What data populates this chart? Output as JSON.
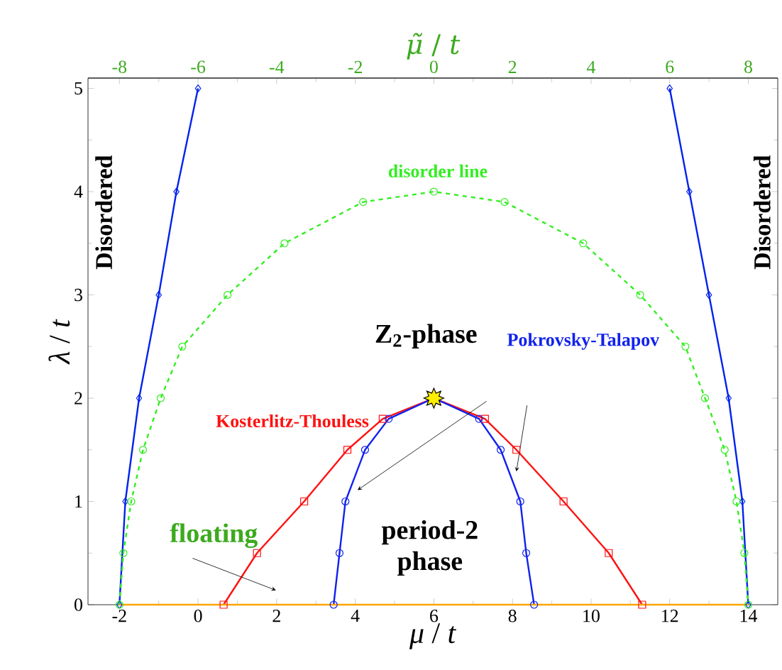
{
  "chart_data": {
    "type": "line",
    "xlabel": "*μ* / *t*",
    "ylabel": "*λ* / *t*",
    "x2label": "*μ̃* / *t*",
    "xlim": [
      -2.8,
      14.75
    ],
    "ylim": [
      0,
      5.1
    ],
    "x2lim": [
      -8.8,
      8.75
    ],
    "xticks": [
      -2,
      0,
      2,
      4,
      6,
      8,
      10,
      12,
      14
    ],
    "yticks": [
      0,
      1,
      2,
      3,
      4,
      5
    ],
    "x2ticks": [
      -8,
      -6,
      -4,
      -2,
      0,
      2,
      4,
      6,
      8
    ],
    "series": [
      {
        "color": "#0022ee",
        "marker": "diamond",
        "line_style": "solid",
        "x": [
          -2,
          -1.85,
          -1.5,
          -1,
          -0.55,
          0
        ],
        "values": [
          0,
          1,
          2,
          3,
          4,
          5
        ]
      },
      {
        "color": "#0022ee",
        "marker": "diamond",
        "line_style": "solid",
        "x": [
          14,
          13.85,
          13.5,
          13,
          12.5,
          12
        ],
        "values": [
          0,
          1,
          2,
          3,
          4,
          5
        ]
      },
      {
        "name": "disorder line",
        "color": "#33ee22",
        "marker": "circle",
        "line_style": "dashed",
        "x": [
          -2,
          -1.9,
          -1.7,
          -1.4,
          -0.95,
          -0.4,
          0.75,
          2.2,
          4.2,
          6,
          7.8,
          9.8,
          11.25,
          12.4,
          12.9,
          13.4,
          13.7,
          13.9,
          14
        ],
        "values": [
          0,
          0.5,
          1,
          1.5,
          2,
          2.5,
          3,
          3.5,
          3.9,
          4,
          3.9,
          3.5,
          3,
          2.5,
          2,
          1.5,
          1,
          0.5,
          0
        ]
      },
      {
        "name": "Kosterlitz-Thouless",
        "color": "#ff1111",
        "marker": "square",
        "line_style": "solid",
        "x": [
          0.65,
          1.5,
          2.7,
          3.8,
          4.7,
          6,
          7.3,
          8.1,
          9.3,
          10.45,
          11.3
        ],
        "values": [
          0,
          0.5,
          1,
          1.5,
          1.8,
          2,
          1.8,
          1.5,
          1,
          0.5,
          0
        ]
      },
      {
        "name": "Pokrovsky-Talapov",
        "color": "#1122ee",
        "marker": "circle",
        "line_style": "solid",
        "x": [
          3.45,
          3.6,
          3.75,
          4.25,
          4.85,
          6,
          7.15,
          7.7,
          8.2,
          8.35,
          8.55
        ],
        "values": [
          0,
          0.5,
          1,
          1.5,
          1.8,
          2,
          1.8,
          1.5,
          1,
          0.5,
          0
        ]
      },
      {
        "color": "#ffa500",
        "marker": "none",
        "line_style": "solid",
        "x": [
          -2,
          14
        ],
        "values": [
          0,
          0
        ]
      },
      {
        "type": "scatter",
        "color": "#ffee00",
        "marker": "star",
        "x": [
          6
        ],
        "values": [
          2
        ]
      }
    ],
    "annotations": [
      "Disordered",
      "Disordered",
      "Z$_{2}$-phase",
      "floating",
      "period-2 phase"
    ]
  }
}
